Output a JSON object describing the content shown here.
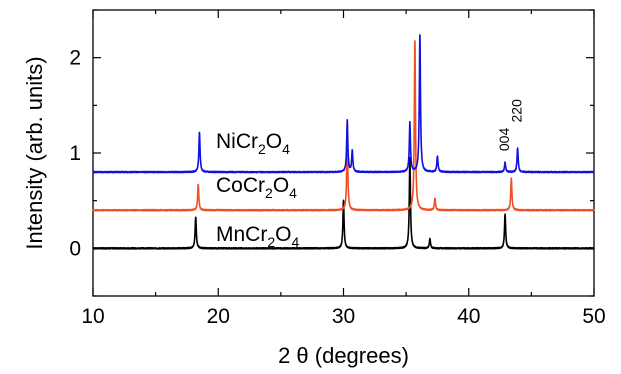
{
  "chart_data": {
    "type": "line",
    "xlabel": "2 θ (degrees)",
    "ylabel": "Intensity (arb. units)",
    "xlim": [
      10,
      50
    ],
    "ylim": [
      -0.5,
      2.5
    ],
    "x_ticks": [
      10,
      20,
      30,
      40,
      50
    ],
    "y_ticks": [
      0,
      1,
      2
    ],
    "grid": false,
    "legend": "none",
    "series": [
      {
        "key": "mn",
        "label_main": "MnCr",
        "label_sub1": "2",
        "label_mid": "O",
        "label_sub2": "4",
        "color": "#000000",
        "baseline": 0.0,
        "peaks": [
          {
            "x": 18.2,
            "h": 0.33
          },
          {
            "x": 30.0,
            "h": 0.5
          },
          {
            "x": 35.3,
            "h": 0.95
          },
          {
            "x": 36.9,
            "h": 0.1
          },
          {
            "x": 42.9,
            "h": 0.36
          }
        ]
      },
      {
        "key": "co",
        "label_main": "CoCr",
        "label_sub1": "2",
        "label_mid": "O",
        "label_sub2": "4",
        "color": "#f04e23",
        "baseline": 0.4,
        "peaks": [
          {
            "x": 18.4,
            "h": 0.27
          },
          {
            "x": 30.3,
            "h": 0.75
          },
          {
            "x": 35.7,
            "h": 1.78
          },
          {
            "x": 37.3,
            "h": 0.12
          },
          {
            "x": 43.4,
            "h": 0.33
          }
        ]
      },
      {
        "key": "ni",
        "label_main": "NiCr",
        "label_sub1": "2",
        "label_mid": "O",
        "label_sub2": "4",
        "color": "#1010e0",
        "baseline": 0.8,
        "peaks": [
          {
            "x": 18.5,
            "h": 0.42
          },
          {
            "x": 30.3,
            "h": 0.54
          },
          {
            "x": 30.7,
            "h": 0.22
          },
          {
            "x": 35.3,
            "h": 0.52
          },
          {
            "x": 36.1,
            "h": 1.44
          },
          {
            "x": 37.5,
            "h": 0.17
          },
          {
            "x": 42.9,
            "h": 0.1
          },
          {
            "x": 43.9,
            "h": 0.25
          }
        ]
      }
    ],
    "annotations": [
      {
        "text": "004",
        "x": 42.9,
        "y": 1.02
      },
      {
        "text": "220",
        "x": 43.9,
        "y": 1.32
      }
    ]
  }
}
